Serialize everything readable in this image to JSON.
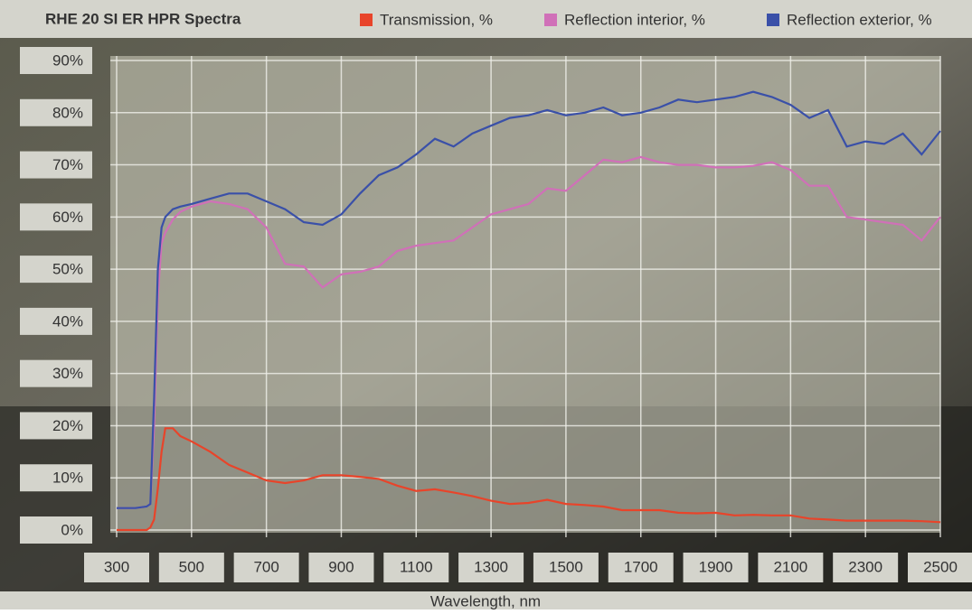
{
  "chart_data": {
    "type": "line",
    "title": "RHE 20 SI ER HPR Spectra",
    "x_label": "Wavelength, nm",
    "x": [
      300,
      350,
      380,
      390,
      400,
      410,
      420,
      430,
      450,
      470,
      500,
      550,
      600,
      650,
      700,
      750,
      800,
      850,
      900,
      950,
      1000,
      1050,
      1100,
      1150,
      1200,
      1250,
      1300,
      1350,
      1400,
      1450,
      1500,
      1550,
      1600,
      1650,
      1700,
      1750,
      1800,
      1850,
      1900,
      1950,
      2000,
      2050,
      2100,
      2150,
      2200,
      2250,
      2300,
      2350,
      2400,
      2450,
      2500
    ],
    "series": [
      {
        "name": "Transmission, %",
        "color": "#e8442a",
        "values": [
          0,
          0,
          0,
          0.5,
          2,
          8,
          15,
          19.5,
          19.5,
          18,
          17,
          15,
          12.5,
          11,
          9.5,
          9,
          9.5,
          10.5,
          10.5,
          10.2,
          9.8,
          8.5,
          7.5,
          7.8,
          7.2,
          6.5,
          5.6,
          5,
          5.2,
          5.8,
          5,
          4.8,
          4.5,
          3.8,
          3.8,
          3.8,
          3.3,
          3.2,
          3.3,
          2.8,
          2.9,
          2.8,
          2.8,
          2.2,
          2,
          1.8,
          1.8,
          1.8,
          1.8,
          1.7,
          1.5
        ]
      },
      {
        "name": "Reflection interior, %",
        "color": "#d070b8",
        "values": [
          4.2,
          4.2,
          4.5,
          5,
          20,
          45,
          55,
          57,
          59.5,
          61,
          62,
          63,
          62.5,
          61.5,
          58,
          51,
          50.5,
          46.5,
          49,
          49.5,
          50.5,
          53.5,
          54.5,
          55,
          55.5,
          58,
          60.5,
          61.5,
          62.5,
          65.5,
          65,
          68,
          71,
          70.5,
          71.5,
          70.5,
          70,
          70,
          69.5,
          69.5,
          69.8,
          70.5,
          69,
          66,
          66,
          60,
          59.5,
          59,
          58.5,
          55.5,
          60
        ]
      },
      {
        "name": "Reflection exterior, %",
        "color": "#3a50a8",
        "values": [
          4.2,
          4.2,
          4.5,
          5,
          25,
          50,
          58,
          60,
          61.5,
          62,
          62.5,
          63.5,
          64.5,
          64.5,
          63,
          61.5,
          59,
          58.5,
          60.5,
          64.5,
          68,
          69.5,
          72,
          75,
          73.5,
          76,
          77.5,
          79,
          79.5,
          80.5,
          79.5,
          80,
          81,
          79.5,
          80,
          81,
          82.5,
          82,
          82.5,
          83,
          84,
          83,
          81.5,
          79,
          80.5,
          73.5,
          74.5,
          74,
          76,
          72,
          76.5
        ]
      }
    ],
    "xlim": [
      300,
      2500
    ],
    "xticks": [
      300,
      500,
      700,
      900,
      1100,
      1300,
      1500,
      1700,
      1900,
      2100,
      2300,
      2500
    ],
    "ylim": [
      0,
      90
    ],
    "yticks": [
      {
        "value": 0,
        "label": "0%"
      },
      {
        "value": 10,
        "label": "10%"
      },
      {
        "value": 20,
        "label": "20%"
      },
      {
        "value": 30,
        "label": "30%"
      },
      {
        "value": 40,
        "label": "40%"
      },
      {
        "value": 50,
        "label": "50%"
      },
      {
        "value": 60,
        "label": "60%"
      },
      {
        "value": 70,
        "label": "70%"
      },
      {
        "value": 80,
        "label": "80%"
      },
      {
        "value": 90,
        "label": "90%"
      }
    ],
    "grid": true
  }
}
